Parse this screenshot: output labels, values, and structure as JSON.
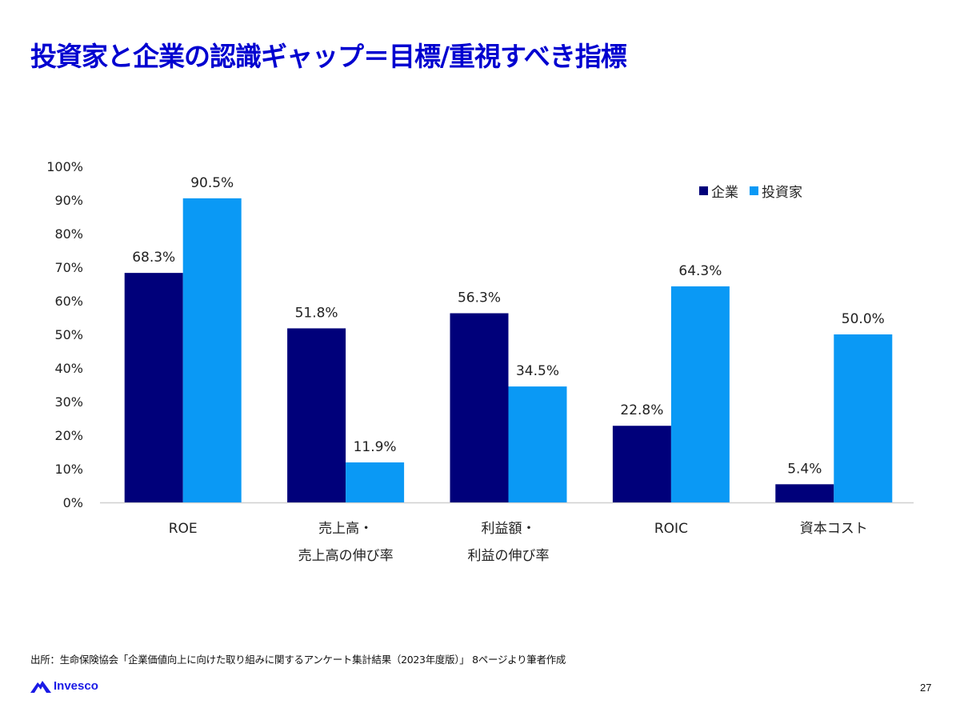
{
  "title": "投資家と企業の認識ギャップ＝目標/重視すべき指標",
  "source_note": "出所：生命保険協会「企業価値向上に向けた取り組みに関するアンケート集計結果（2023年度版）」 8ページより筆者作成",
  "logo_text": "Invesco",
  "page_number": "27",
  "colors": {
    "title": "#0000d0",
    "kigyo": "#00007a",
    "toshika": "#0a99f5"
  },
  "chart_data": {
    "type": "bar",
    "title": "",
    "xlabel": "",
    "ylabel": "",
    "ylim": [
      0,
      100
    ],
    "yticks": [
      "0%",
      "10%",
      "20%",
      "30%",
      "40%",
      "50%",
      "60%",
      "70%",
      "80%",
      "90%",
      "100%"
    ],
    "grid": false,
    "legend_position": "top-right",
    "categories": [
      [
        "ROE"
      ],
      [
        "売上高・",
        "売上高の伸び率"
      ],
      [
        "利益額・",
        "利益の伸び率"
      ],
      [
        "ROIC"
      ],
      [
        "資本コスト"
      ]
    ],
    "series": [
      {
        "name": "企業",
        "color": "#00007a",
        "values": [
          68.3,
          51.8,
          56.3,
          22.8,
          5.4
        ],
        "labels": [
          "68.3%",
          "51.8%",
          "56.3%",
          "22.8%",
          "5.4%"
        ]
      },
      {
        "name": "投資家",
        "color": "#0a99f5",
        "values": [
          90.5,
          11.9,
          34.5,
          64.3,
          50.0
        ],
        "labels": [
          "90.5%",
          "11.9%",
          "34.5%",
          "64.3%",
          "50.0%"
        ]
      }
    ]
  }
}
